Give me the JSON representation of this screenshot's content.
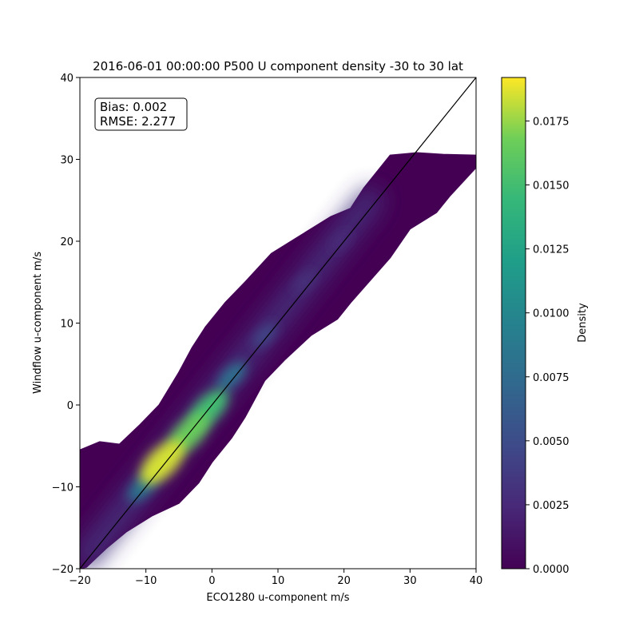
{
  "chart_data": {
    "type": "heatmap",
    "title": "2016-06-01 00:00:00 P500 U component density -30 to 30 lat",
    "xlabel": "ECO1280 u-component m/s",
    "ylabel": "Windflow u-component m/s",
    "xlim": [
      -20,
      40
    ],
    "ylim": [
      -20,
      40
    ],
    "x_ticks": [
      -20,
      -10,
      0,
      10,
      20,
      30,
      40
    ],
    "y_ticks": [
      -20,
      -10,
      0,
      10,
      20,
      30,
      40
    ],
    "x_tick_labels": [
      "−20",
      "−10",
      "0",
      "10",
      "20",
      "30",
      "40"
    ],
    "y_tick_labels": [
      "−20",
      "−10",
      "0",
      "10",
      "20",
      "30",
      "40"
    ],
    "grid": false,
    "colormap": "viridis",
    "colorbar": {
      "label": "Density",
      "range": [
        0.0,
        0.0192
      ],
      "ticks": [
        0.0,
        0.0025,
        0.005,
        0.0075,
        0.01,
        0.0125,
        0.015,
        0.0175
      ],
      "tick_labels": [
        "0.0000",
        "0.0025",
        "0.0050",
        "0.0075",
        "0.0100",
        "0.0125",
        "0.0150",
        "0.0175"
      ]
    },
    "stats_box": {
      "lines": [
        "Bias: 0.002",
        "RMSE: 2.277"
      ]
    },
    "reference_line": {
      "from": [
        -20,
        -20
      ],
      "to": [
        40,
        40
      ],
      "color": "#000000"
    },
    "density_hotspots": [
      {
        "x": -7.5,
        "y": -7.0,
        "density": 0.0185
      },
      {
        "x": -3.5,
        "y": -3.5,
        "density": 0.0165
      },
      {
        "x": -0.5,
        "y": -0.5,
        "density": 0.015
      },
      {
        "x": -10.5,
        "y": -10.0,
        "density": 0.0085
      },
      {
        "x": 3.0,
        "y": 3.5,
        "density": 0.008
      },
      {
        "x": 8.0,
        "y": 8.5,
        "density": 0.0045
      },
      {
        "x": 14.0,
        "y": 15.0,
        "density": 0.003
      },
      {
        "x": 19.5,
        "y": 20.0,
        "density": 0.0025
      }
    ],
    "scatter_envelope_upper": [
      [
        -20,
        -5.5
      ],
      [
        -17,
        -4.5
      ],
      [
        -14,
        -4.8
      ],
      [
        -11,
        -2.5
      ],
      [
        -8,
        0.0
      ],
      [
        -5,
        4.0
      ],
      [
        -3,
        7.0
      ],
      [
        -1,
        9.5
      ],
      [
        2,
        12.5
      ],
      [
        5,
        15.0
      ],
      [
        9,
        18.5
      ],
      [
        13,
        20.5
      ],
      [
        18,
        23.0
      ],
      [
        21,
        24.0
      ],
      [
        23,
        26.5
      ],
      [
        27,
        30.5
      ],
      [
        31,
        30.8
      ],
      [
        35,
        30.6
      ],
      [
        40,
        30.5
      ]
    ],
    "scatter_envelope_lower": [
      [
        40,
        29.0
      ],
      [
        36,
        25.5
      ],
      [
        34,
        23.5
      ],
      [
        30,
        21.5
      ],
      [
        27,
        18.0
      ],
      [
        21,
        12.5
      ],
      [
        19,
        10.5
      ],
      [
        15,
        8.5
      ],
      [
        11,
        5.5
      ],
      [
        8,
        3.0
      ],
      [
        5,
        -1.5
      ],
      [
        3,
        -4.0
      ],
      [
        0,
        -7.0
      ],
      [
        -2,
        -9.5
      ],
      [
        -5,
        -12.0
      ],
      [
        -9,
        -13.5
      ],
      [
        -13,
        -15.5
      ],
      [
        -16,
        -17.5
      ],
      [
        -19,
        -19.8
      ],
      [
        -20,
        -20
      ]
    ]
  }
}
